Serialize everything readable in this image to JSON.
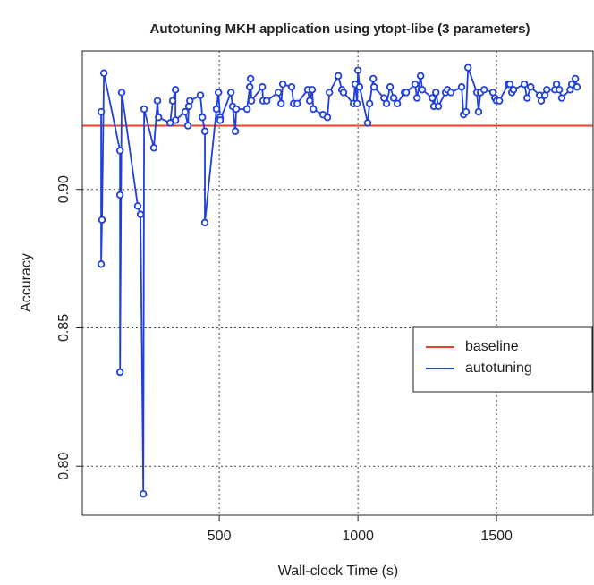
{
  "chart_data": {
    "type": "line",
    "title": "Autotuning MKH application using ytopt-libe (3 parameters)",
    "x_label": "Wall-clock Time (s)",
    "y_label": "Accuracy",
    "xlim": [
      6,
      1848
    ],
    "ylim": [
      0.7823,
      0.95
    ],
    "xticks": [
      500,
      1000,
      1500
    ],
    "yticks": [
      {
        "value": 0.8,
        "label": "0.80"
      },
      0.85,
      {
        "value": 0.9,
        "label": "0.90"
      }
    ],
    "grid": true,
    "legend_position": "right",
    "series": [
      {
        "name": "baseline",
        "color": "#e8412c",
        "value": 0.923
      },
      {
        "name": "autotuning",
        "color": "#1f3fdc",
        "x": [
          74,
          74,
          77,
          84,
          142,
          142,
          142,
          148,
          206,
          216,
          226,
          229,
          264,
          277,
          281,
          323,
          332,
          342,
          342,
          377,
          387,
          390,
          394,
          432,
          439,
          448,
          448,
          490,
          497,
          503,
          503,
          542,
          548,
          558,
          561,
          600,
          610,
          613,
          616,
          655,
          658,
          671,
          713,
          723,
          729,
          761,
          768,
          781,
          819,
          826,
          835,
          839,
          874,
          890,
          897,
          929,
          942,
          948,
          984,
          990,
          997,
          1000,
          1006,
          1035,
          1042,
          1055,
          1058,
          1094,
          1103,
          1116,
          1129,
          1142,
          1168,
          1174,
          1206,
          1213,
          1226,
          1232,
          1268,
          1274,
          1281,
          1290,
          1316,
          1323,
          1335,
          1374,
          1381,
          1390,
          1397,
          1429,
          1435,
          1442,
          1455,
          1487,
          1494,
          1500,
          1510,
          1542,
          1548,
          1555,
          1561,
          1600,
          1610,
          1623,
          1655,
          1661,
          1674,
          1681,
          1710,
          1716,
          1726,
          1735,
          1765,
          1771,
          1784,
          1790
        ],
        "values": [
          0.928,
          0.873,
          0.889,
          0.942,
          0.914,
          0.898,
          0.834,
          0.935,
          0.894,
          0.891,
          0.79,
          0.929,
          0.915,
          0.932,
          0.926,
          0.924,
          0.932,
          0.936,
          0.925,
          0.928,
          0.923,
          0.93,
          0.932,
          0.934,
          0.926,
          0.921,
          0.888,
          0.929,
          0.935,
          0.926,
          0.925,
          0.935,
          0.93,
          0.921,
          0.929,
          0.929,
          0.937,
          0.94,
          0.932,
          0.937,
          0.932,
          0.932,
          0.935,
          0.931,
          0.938,
          0.937,
          0.931,
          0.931,
          0.936,
          0.932,
          0.936,
          0.929,
          0.927,
          0.926,
          0.935,
          0.941,
          0.936,
          0.935,
          0.931,
          0.938,
          0.931,
          0.943,
          0.937,
          0.924,
          0.931,
          0.94,
          0.937,
          0.933,
          0.931,
          0.937,
          0.933,
          0.931,
          0.935,
          0.935,
          0.938,
          0.933,
          0.941,
          0.936,
          0.933,
          0.93,
          0.935,
          0.93,
          0.935,
          0.936,
          0.935,
          0.937,
          0.927,
          0.928,
          0.944,
          0.935,
          0.928,
          0.935,
          0.936,
          0.935,
          0.933,
          0.932,
          0.932,
          0.938,
          0.938,
          0.935,
          0.936,
          0.938,
          0.933,
          0.937,
          0.934,
          0.932,
          0.934,
          0.936,
          0.936,
          0.938,
          0.936,
          0.933,
          0.936,
          0.938,
          0.94,
          0.937
        ]
      }
    ]
  }
}
